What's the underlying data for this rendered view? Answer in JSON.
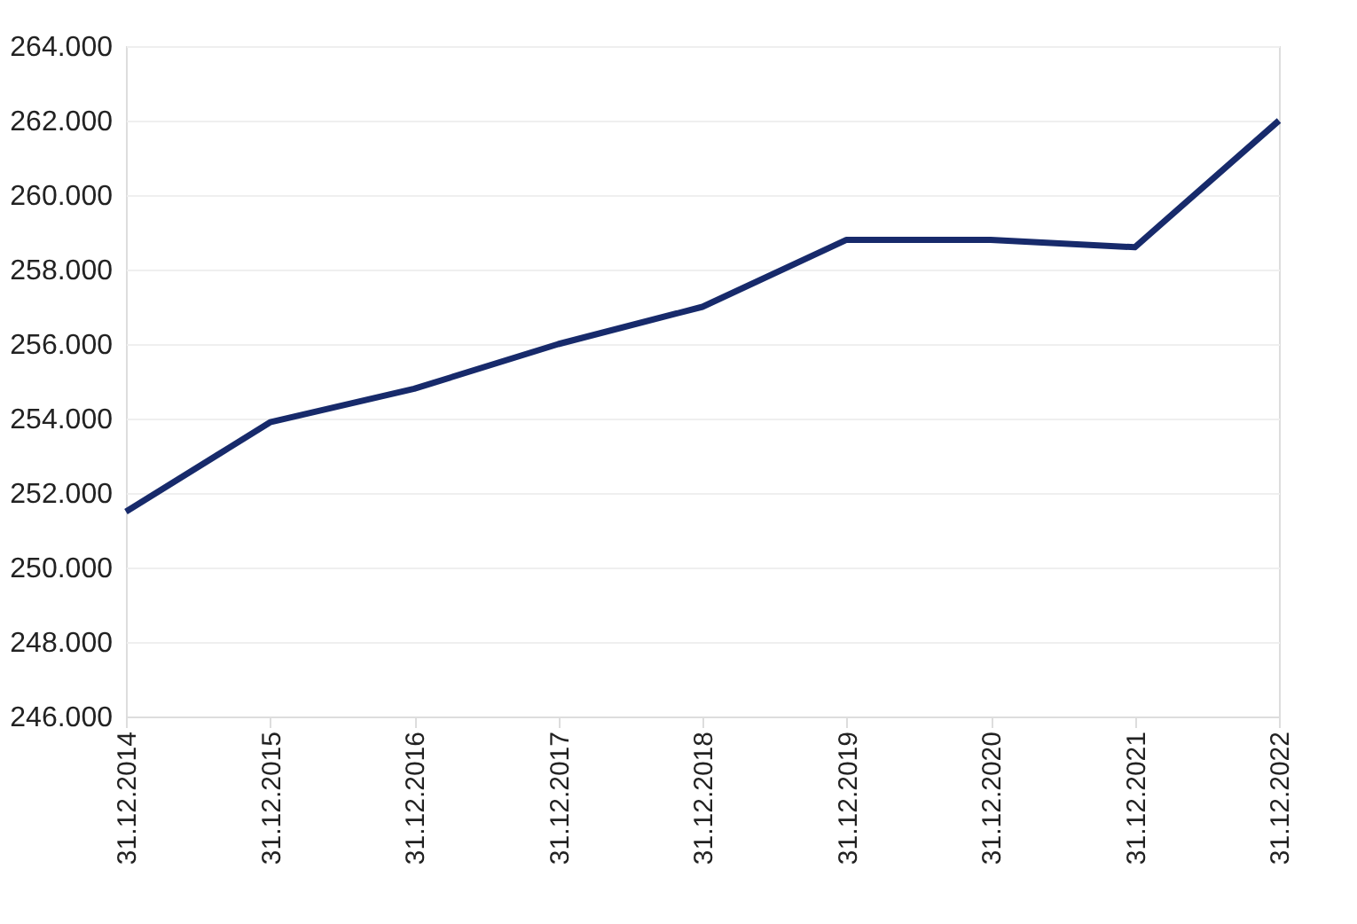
{
  "chart_data": {
    "type": "line",
    "categories": [
      "31.12.2014",
      "31.12.2015",
      "31.12.2016",
      "31.12.2017",
      "31.12.2018",
      "31.12.2019",
      "31.12.2020",
      "31.12.2021",
      "31.12.2022"
    ],
    "series": [
      {
        "color": "#172a6b",
        "values": [
          251500,
          253900,
          254800,
          256000,
          257000,
          258800,
          258800,
          258600,
          262000
        ]
      }
    ],
    "ylim": [
      246000,
      264000
    ],
    "yticks": [
      {
        "value": 246000,
        "label": "246.000"
      },
      {
        "value": 248000,
        "label": "248.000"
      },
      {
        "value": 250000,
        "label": "250.000"
      },
      {
        "value": 252000,
        "label": "252.000"
      },
      {
        "value": 254000,
        "label": "254.000"
      },
      {
        "value": 256000,
        "label": "256.000"
      },
      {
        "value": 258000,
        "label": "258.000"
      },
      {
        "value": 260000,
        "label": "260.000"
      },
      {
        "value": 262000,
        "label": "262.000"
      },
      {
        "value": 264000,
        "label": "264.000"
      }
    ],
    "grid": "y",
    "marker": "none",
    "line_style": "solid"
  }
}
